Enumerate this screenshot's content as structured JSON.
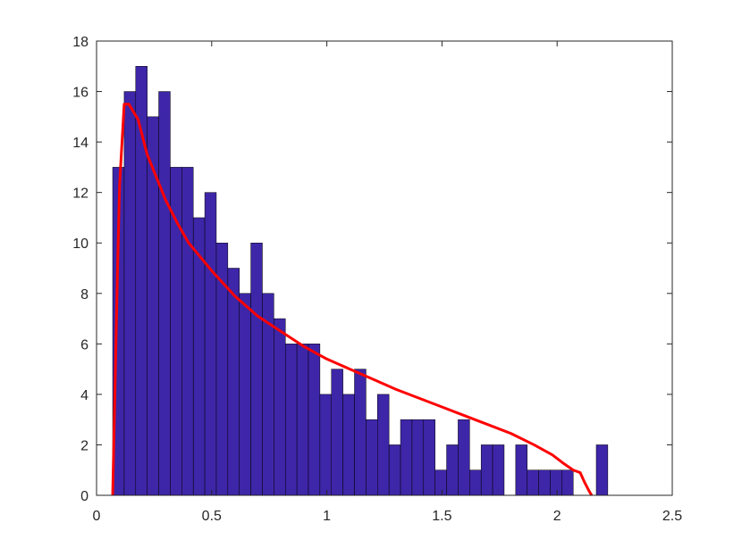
{
  "chart_data": {
    "type": "bar",
    "title": "",
    "xlabel": "",
    "ylabel": "",
    "xlim": [
      0,
      2.5
    ],
    "ylim": [
      0,
      18
    ],
    "xticks": [
      "0",
      "0.5",
      "1",
      "1.5",
      "2",
      "2.5"
    ],
    "yticks": [
      "0",
      "2",
      "4",
      "6",
      "8",
      "10",
      "12",
      "14",
      "16",
      "18"
    ],
    "grid": false,
    "bins": {
      "start": 0.07,
      "width": 0.05,
      "counts": [
        13,
        16,
        17,
        15,
        16,
        13,
        13,
        11,
        12,
        10,
        9,
        8,
        10,
        8,
        7,
        6,
        6,
        6,
        4,
        5,
        4,
        5,
        3,
        4,
        2,
        3,
        3,
        3,
        1,
        2,
        3,
        1,
        2,
        2,
        0,
        2,
        1,
        1,
        1,
        1,
        0,
        0,
        2
      ]
    },
    "curve": {
      "x": [
        0.07,
        0.08,
        0.09,
        0.1,
        0.12,
        0.14,
        0.18,
        0.22,
        0.26,
        0.3,
        0.35,
        0.4,
        0.5,
        0.6,
        0.7,
        0.8,
        0.9,
        1.0,
        1.1,
        1.2,
        1.3,
        1.4,
        1.5,
        1.6,
        1.7,
        1.8,
        1.9,
        1.98,
        2.03,
        2.07,
        2.1,
        2.12,
        2.14,
        2.15
      ],
      "y": [
        0,
        4.2,
        8.5,
        12.3,
        15.5,
        15.5,
        14.9,
        13.5,
        12.6,
        11.7,
        10.8,
        10.0,
        8.9,
        7.9,
        7.1,
        6.5,
        5.9,
        5.4,
        5.0,
        4.6,
        4.2,
        3.85,
        3.5,
        3.15,
        2.8,
        2.45,
        2.0,
        1.6,
        1.25,
        1.0,
        0.9,
        0.5,
        0.15,
        0
      ]
    },
    "colors": {
      "bar_fill": "#3e26a8",
      "bar_edge": "#000000",
      "curve": "#ff0000",
      "axes": "#262626"
    }
  }
}
